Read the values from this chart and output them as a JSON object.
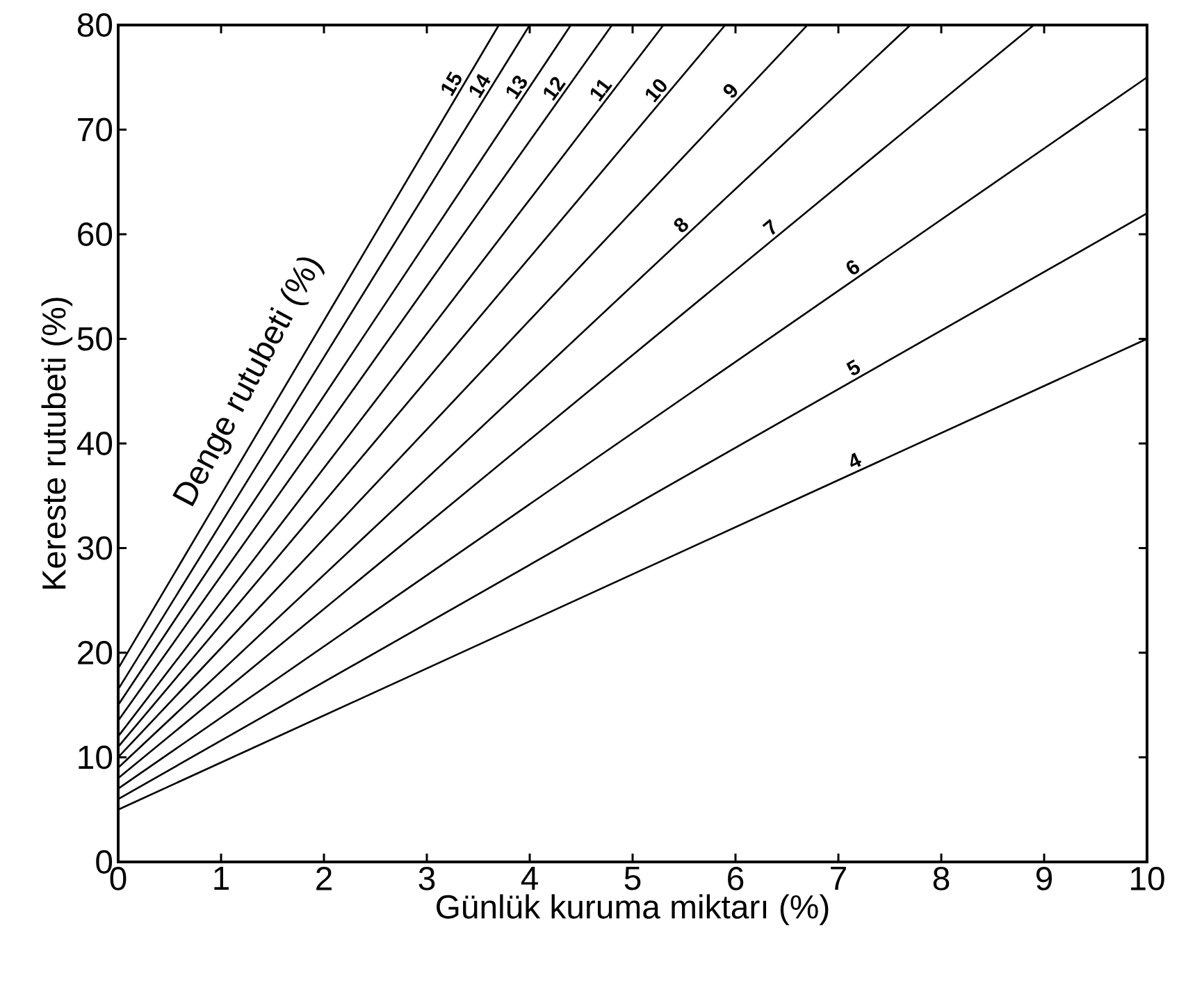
{
  "chart_data": {
    "type": "line",
    "xlabel": "Günlük kuruma miktarı (%)",
    "ylabel": "Kereste rutubeti (%)",
    "legend_title": "Denge rutubeti (%)",
    "legend": false,
    "grid": false,
    "marker": "none",
    "line_style": "solid",
    "xlim": [
      0,
      10
    ],
    "ylim": [
      0,
      80
    ],
    "xticks": [
      0,
      1,
      2,
      3,
      4,
      5,
      6,
      7,
      8,
      9,
      10
    ],
    "yticks": [
      0,
      10,
      20,
      30,
      40,
      50,
      60,
      70,
      80
    ],
    "series": [
      {
        "name": "4",
        "color": "#000000",
        "x": [
          0,
          10
        ],
        "values": [
          5,
          50
        ]
      },
      {
        "name": "5",
        "color": "#000000",
        "x": [
          0,
          10
        ],
        "values": [
          6,
          62
        ]
      },
      {
        "name": "6",
        "color": "#000000",
        "x": [
          0,
          10
        ],
        "values": [
          7,
          75
        ]
      },
      {
        "name": "7",
        "color": "#000000",
        "x": [
          0,
          8.9
        ],
        "values": [
          8,
          80
        ]
      },
      {
        "name": "8",
        "color": "#000000",
        "x": [
          0,
          7.7
        ],
        "values": [
          9,
          80
        ]
      },
      {
        "name": "9",
        "color": "#000000",
        "x": [
          0,
          6.7
        ],
        "values": [
          10,
          80
        ]
      },
      {
        "name": "10",
        "color": "#000000",
        "x": [
          0,
          5.9
        ],
        "values": [
          11,
          80
        ]
      },
      {
        "name": "11",
        "color": "#000000",
        "x": [
          0,
          5.3
        ],
        "values": [
          12,
          80
        ]
      },
      {
        "name": "12",
        "color": "#000000",
        "x": [
          0,
          4.8
        ],
        "values": [
          13.5,
          80
        ]
      },
      {
        "name": "13",
        "color": "#000000",
        "x": [
          0,
          4.4
        ],
        "values": [
          15,
          80
        ]
      },
      {
        "name": "14",
        "color": "#000000",
        "x": [
          0,
          4.0
        ],
        "values": [
          16.5,
          80
        ]
      },
      {
        "name": "15",
        "color": "#000000",
        "x": [
          0,
          3.7
        ],
        "values": [
          18.5,
          80
        ]
      }
    ]
  }
}
